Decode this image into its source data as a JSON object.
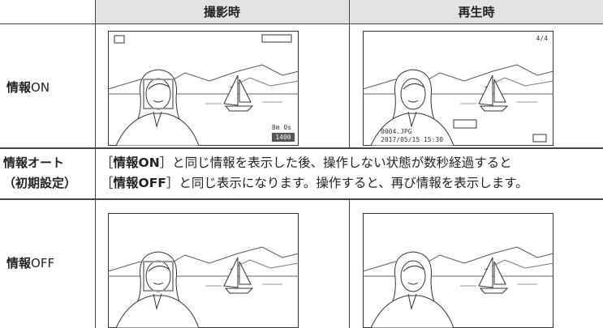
{
  "header": {
    "columns": [
      "撮影時",
      "再生時"
    ]
  },
  "rows": [
    {
      "label": {
        "bold": "情報",
        "normal": "ON"
      },
      "shooting_overlay": {
        "remaining_time": "8m 0s",
        "remaining_shots": "1400"
      },
      "playback_overlay": {
        "frame_count": "4/4",
        "file_name": "0004.JPG",
        "date_time": "2017/05/15 15:30"
      }
    },
    {
      "label": {
        "lines": [
          "情報オート",
          "（初期設定）"
        ]
      },
      "description": {
        "lines": [
          [
            "［",
            "情報ON",
            "］と同じ情報を表示した後、操作しない状態が数秒経過すると"
          ],
          [
            "［",
            "情報OFF",
            "］と同じ表示になります。操作すると、再び情報を表示します。"
          ]
        ]
      }
    },
    {
      "label": {
        "bold": "情報",
        "normal": "OFF"
      }
    }
  ]
}
